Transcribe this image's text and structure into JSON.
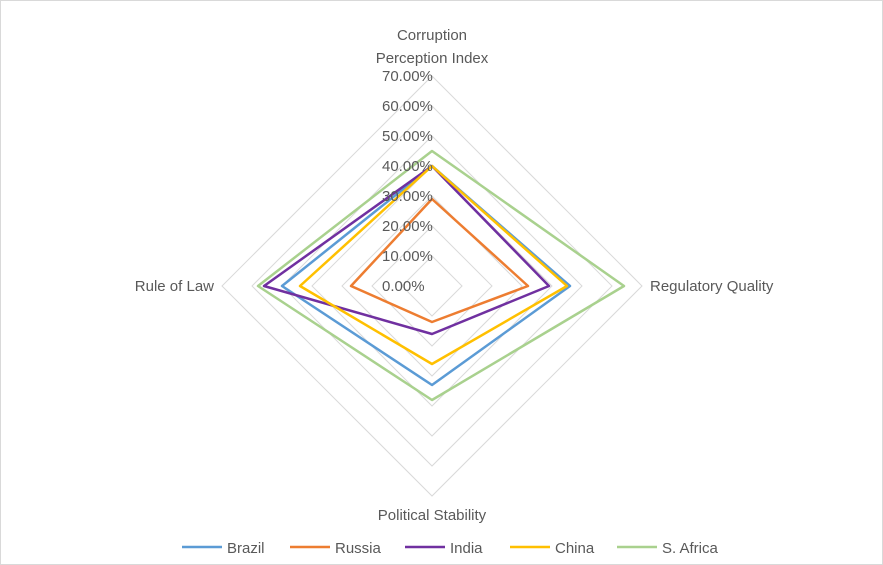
{
  "chart_data": {
    "type": "radar",
    "title": "",
    "axes": [
      "Corruption Perception Index",
      "Regulatory Quality",
      "Political Stability",
      "Rule of Law"
    ],
    "axis_label_lines": [
      [
        "Corruption",
        "Perception Index"
      ],
      [
        "Regulatory Quality"
      ],
      [
        "Political Stability"
      ],
      [
        "Rule of Law"
      ]
    ],
    "range": [
      0,
      0.7
    ],
    "tick_step": 0.1,
    "tick_labels": [
      "0.00%",
      "10.00%",
      "20.00%",
      "30.00%",
      "40.00%",
      "50.00%",
      "60.00%",
      "70.00%"
    ],
    "grid": true,
    "legend_position": "bottom",
    "series": [
      {
        "name": "Brazil",
        "color": "#5b9bd5",
        "values": [
          0.4,
          0.46,
          0.33,
          0.5
        ]
      },
      {
        "name": "Russia",
        "color": "#ed7d31",
        "values": [
          0.29,
          0.32,
          0.12,
          0.27
        ]
      },
      {
        "name": "India",
        "color": "#7030a0",
        "values": [
          0.4,
          0.39,
          0.16,
          0.56
        ]
      },
      {
        "name": "China",
        "color": "#ffc000",
        "values": [
          0.4,
          0.45,
          0.26,
          0.44
        ]
      },
      {
        "name": "S. Africa",
        "color": "#a9d18e",
        "values": [
          0.45,
          0.64,
          0.38,
          0.58
        ]
      }
    ]
  }
}
